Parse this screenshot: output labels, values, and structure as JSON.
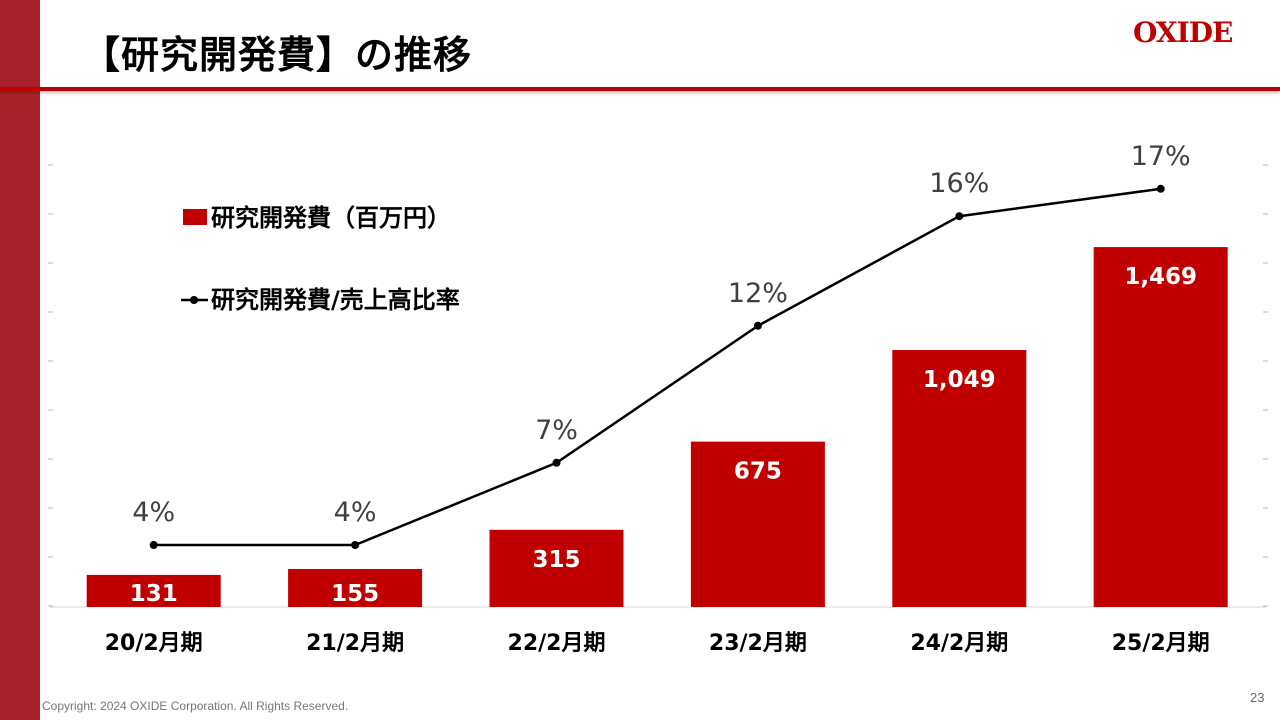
{
  "title": "【研究開発費】の推移",
  "logo": "OXIDE",
  "footer": {
    "copyright": "Copyright: 2024 OXIDE Corporation. All Rights Reserved.",
    "page": "23"
  },
  "colors": {
    "bar": "#C00000",
    "line": "#000000",
    "sidebar": "#A8222B"
  },
  "chart_data": {
    "type": "bar+line",
    "categories": [
      "20/2月期",
      "21/2月期",
      "22/2月期",
      "23/2月期",
      "24/2月期",
      "25/2月期"
    ],
    "series": [
      {
        "name": "研究開発費（百万円）",
        "type": "bar",
        "values": [
          131,
          155,
          315,
          675,
          1049,
          1469
        ],
        "labels": [
          "131",
          "155",
          "315",
          "675",
          "1,049",
          "1,469"
        ]
      },
      {
        "name": "研究開発費/売上高比率",
        "type": "line",
        "values": [
          4,
          4,
          7,
          12,
          16,
          17
        ],
        "labels": [
          "4%",
          "4%",
          "7%",
          "12%",
          "16%",
          "17%"
        ],
        "unit": "%"
      }
    ],
    "legend": "top-left",
    "grid": false
  }
}
